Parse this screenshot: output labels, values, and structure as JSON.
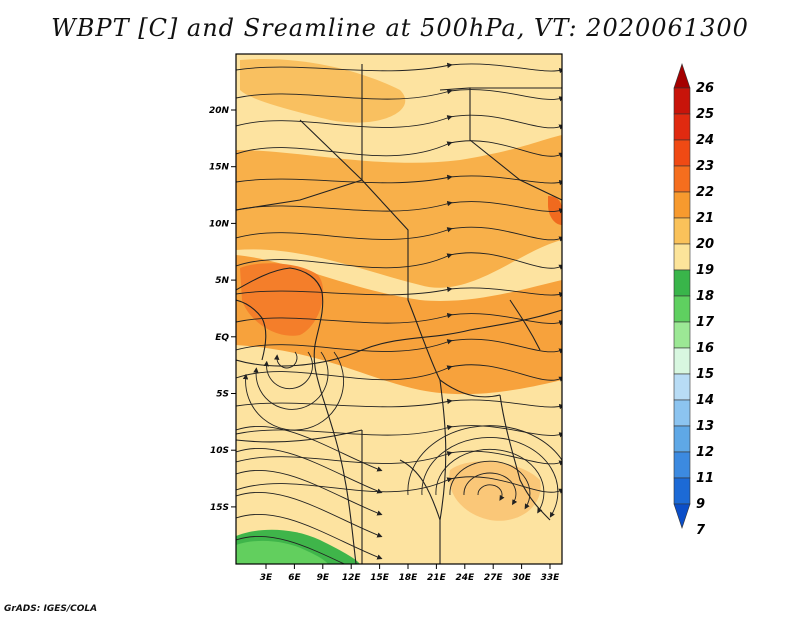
{
  "title": "WBPT [C] and Sreamline at 500hPa, VT: 2020061300",
  "credit": "GrADS: IGES/COLA",
  "axes": {
    "lon_ticks": [
      "3E",
      "6E",
      "9E",
      "12E",
      "15E",
      "18E",
      "21E",
      "24E",
      "27E",
      "30E",
      "33E"
    ],
    "lat_ticks": [
      "20N",
      "15N",
      "10N",
      "5N",
      "EQ",
      "5S",
      "10S",
      "15S"
    ]
  },
  "colorbar": {
    "labels": [
      "26",
      "25",
      "24",
      "23",
      "22",
      "21",
      "20",
      "19",
      "18",
      "17",
      "16",
      "15",
      "14",
      "13",
      "12",
      "11",
      "9",
      "7"
    ],
    "colors": [
      "#a50000",
      "#c8140a",
      "#e02a10",
      "#f04a14",
      "#f56e1e",
      "#f79a2e",
      "#fac25a",
      "#fce49a",
      "#39b54a",
      "#5fd060",
      "#9ce895",
      "#d8f7e0",
      "#b8dcf5",
      "#8cc4f0",
      "#5fa8e6",
      "#3c8ae0",
      "#1c6ad6",
      "#0b4ec8"
    ]
  },
  "chart_data": {
    "type": "map",
    "variable": "WBPT [C]",
    "level": "500hPa",
    "valid_time": "2020061300",
    "lon_range": [
      "0E",
      "35E"
    ],
    "lat_range": [
      "19S",
      "24N"
    ]
  }
}
